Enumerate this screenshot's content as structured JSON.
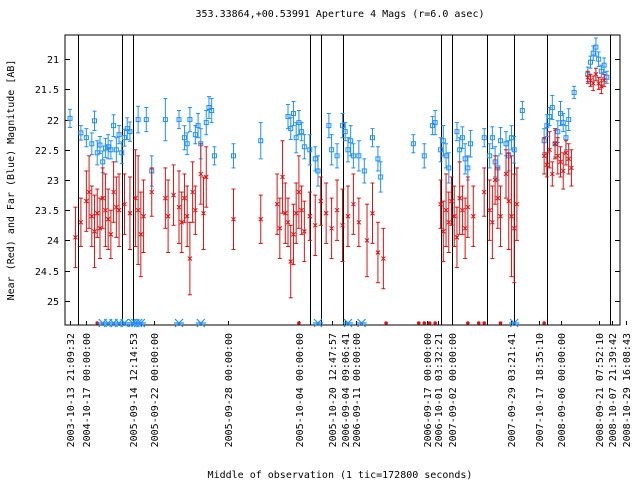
{
  "chart_data": {
    "type": "scatter",
    "title": "353.33864,+00.53991   Aperture 4 Mags (r=6.0 asec)",
    "xlabel": "Middle of observation (1 tic=172800 seconds)",
    "ylabel": "Near (Red) and Far (Blue) Magnitude [AB]",
    "ylim": [
      25.4,
      20.6
    ],
    "y_ticks": [
      21,
      21.5,
      22,
      22.5,
      23,
      23.5,
      24,
      24.5,
      25
    ],
    "grid": false,
    "axis_breaks": [
      0.015,
      0.095,
      0.115,
      0.44,
      0.46,
      0.5,
      0.68,
      0.7,
      0.765,
      0.815,
      0.875,
      0.99
    ],
    "x_tick_labels": [
      {
        "label": "2003-10-13 21:09:32",
        "pos": 0.0
      },
      {
        "label": "2004-10-17 00:00:00",
        "pos": 0.03
      },
      {
        "label": "2005-09-14 12:14:53",
        "pos": 0.115
      },
      {
        "label": "2005-09-22 00:00:00",
        "pos": 0.155
      },
      {
        "label": "2005-09-28 00:00:00",
        "pos": 0.29
      },
      {
        "label": "2005-10-04 00:00:00",
        "pos": 0.42
      },
      {
        "label": "2005-10-20 12:47:57",
        "pos": 0.48
      },
      {
        "label": "2006-09-04 09:06:41",
        "pos": 0.505
      },
      {
        "label": "2006-09-11 00:00:00",
        "pos": 0.525
      },
      {
        "label": "2006-09-17 00:00:00",
        "pos": 0.655
      },
      {
        "label": "2006-10-01 03:32:21",
        "pos": 0.675
      },
      {
        "label": "2007-09-02 00:00:00",
        "pos": 0.7
      },
      {
        "label": "2007-09-29 03:21:41",
        "pos": 0.81
      },
      {
        "label": "2007-10-17 18:35:10",
        "pos": 0.86
      },
      {
        "label": "2008-09-06 00:00:00",
        "pos": 0.9
      },
      {
        "label": "2008-09-21 07:52:10",
        "pos": 0.97
      },
      {
        "label": "2008-10-07 21:39:42",
        "pos": 0.995
      },
      {
        "label": "2008-10-29 16:08:43",
        "pos": 1.02
      }
    ],
    "series": [
      {
        "name": "Far (Blue)",
        "color": "#1e90ff",
        "marker": "square",
        "points": [
          [
            0.0,
            21.98,
            0.15
          ],
          [
            0.02,
            22.22,
            0.12
          ],
          [
            0.03,
            22.3,
            0.15
          ],
          [
            0.04,
            22.4,
            0.18
          ],
          [
            0.045,
            22.02,
            0.16
          ],
          [
            0.05,
            22.55,
            0.2
          ],
          [
            0.055,
            22.42,
            0.14
          ],
          [
            0.06,
            22.7,
            0.18
          ],
          [
            0.065,
            22.47,
            0.16
          ],
          [
            0.07,
            22.45,
            0.2
          ],
          [
            0.075,
            22.5,
            0.15
          ],
          [
            0.08,
            22.1,
            0.18
          ],
          [
            0.085,
            22.5,
            0.2
          ],
          [
            0.09,
            22.25,
            0.15
          ],
          [
            0.095,
            22.55,
            0.18
          ],
          [
            0.1,
            22.3,
            0.14
          ],
          [
            0.105,
            22.15,
            0.18
          ],
          [
            0.11,
            22.2,
            0.16
          ],
          [
            0.125,
            22.0,
            0.22
          ],
          [
            0.14,
            22.0,
            0.2
          ],
          [
            0.15,
            22.85,
            0.25
          ],
          [
            0.175,
            22.0,
            0.35
          ],
          [
            0.2,
            22.0,
            0.15
          ],
          [
            0.21,
            22.3,
            0.2
          ],
          [
            0.215,
            22.4,
            0.18
          ],
          [
            0.22,
            22.0,
            0.2
          ],
          [
            0.23,
            22.25,
            0.15
          ],
          [
            0.235,
            22.1,
            0.2
          ],
          [
            0.24,
            22.4,
            0.25
          ],
          [
            0.25,
            22.05,
            0.2
          ],
          [
            0.255,
            21.8,
            0.18
          ],
          [
            0.26,
            21.85,
            0.2
          ],
          [
            0.265,
            22.6,
            0.15
          ],
          [
            0.3,
            22.6,
            0.2
          ],
          [
            0.35,
            22.35,
            0.3
          ],
          [
            0.4,
            21.95,
            0.2
          ],
          [
            0.405,
            22.15,
            0.18
          ],
          [
            0.41,
            21.9,
            0.2
          ],
          [
            0.415,
            22.3,
            0.25
          ],
          [
            0.42,
            22.05,
            0.2
          ],
          [
            0.425,
            22.2,
            0.15
          ],
          [
            0.43,
            22.45,
            0.2
          ],
          [
            0.44,
            22.5,
            0.25
          ],
          [
            0.45,
            22.65,
            0.2
          ],
          [
            0.455,
            22.85,
            0.25
          ],
          [
            0.475,
            22.1,
            0.2
          ],
          [
            0.48,
            22.5,
            0.25
          ],
          [
            0.49,
            22.6,
            0.2
          ],
          [
            0.5,
            22.1,
            0.2
          ],
          [
            0.505,
            22.2,
            0.15
          ],
          [
            0.51,
            22.5,
            0.2
          ],
          [
            0.515,
            22.35,
            0.25
          ],
          [
            0.52,
            22.6,
            0.2
          ],
          [
            0.53,
            22.6,
            0.25
          ],
          [
            0.54,
            22.85,
            0.2
          ],
          [
            0.555,
            22.3,
            0.15
          ],
          [
            0.565,
            22.65,
            0.2
          ],
          [
            0.57,
            22.95,
            0.25
          ],
          [
            0.63,
            22.4,
            0.15
          ],
          [
            0.65,
            22.6,
            0.2
          ],
          [
            0.665,
            22.1,
            0.15
          ],
          [
            0.67,
            22.05,
            0.2
          ],
          [
            0.68,
            22.5,
            0.2
          ],
          [
            0.685,
            22.35,
            0.25
          ],
          [
            0.69,
            22.6,
            0.2
          ],
          [
            0.695,
            22.8,
            0.25
          ],
          [
            0.71,
            22.2,
            0.15
          ],
          [
            0.715,
            22.5,
            0.2
          ],
          [
            0.72,
            22.3,
            0.18
          ],
          [
            0.725,
            22.65,
            0.25
          ],
          [
            0.73,
            22.8,
            0.2
          ],
          [
            0.735,
            22.4,
            0.22
          ],
          [
            0.76,
            22.3,
            0.15
          ],
          [
            0.77,
            22.6,
            0.2
          ],
          [
            0.775,
            22.3,
            0.18
          ],
          [
            0.78,
            22.7,
            0.25
          ],
          [
            0.785,
            22.8,
            0.2
          ],
          [
            0.79,
            22.35,
            0.22
          ],
          [
            0.8,
            22.4,
            0.2
          ],
          [
            0.805,
            22.6,
            0.25
          ],
          [
            0.81,
            22.3,
            0.2
          ],
          [
            0.815,
            22.5,
            0.22
          ],
          [
            0.83,
            21.85,
            0.15
          ],
          [
            0.87,
            22.35,
            0.2
          ],
          [
            0.875,
            22.1,
            0.18
          ],
          [
            0.88,
            21.95,
            0.15
          ],
          [
            0.885,
            21.8,
            0.2
          ],
          [
            0.89,
            22.4,
            0.22
          ],
          [
            0.895,
            22.2,
            0.18
          ],
          [
            0.9,
            21.9,
            0.2
          ],
          [
            0.905,
            22.05,
            0.15
          ],
          [
            0.91,
            22.3,
            0.2
          ],
          [
            0.915,
            22.0,
            0.18
          ],
          [
            0.925,
            21.55,
            0.1
          ],
          [
            0.95,
            21.25,
            0.12
          ],
          [
            0.955,
            21.05,
            0.1
          ],
          [
            0.96,
            20.9,
            0.12
          ],
          [
            0.965,
            20.8,
            0.15
          ],
          [
            0.97,
            21.0,
            0.12
          ],
          [
            0.975,
            21.2,
            0.1
          ],
          [
            0.98,
            21.1,
            0.12
          ],
          [
            0.985,
            21.3,
            0.1
          ]
        ]
      },
      {
        "name": "Near (Red)",
        "color": "#dd1111",
        "marker": "x",
        "points": [
          [
            0.01,
            23.95,
            0.5
          ],
          [
            0.02,
            23.7,
            0.4
          ],
          [
            0.03,
            23.35,
            0.5
          ],
          [
            0.035,
            23.2,
            0.6
          ],
          [
            0.04,
            23.6,
            0.5
          ],
          [
            0.045,
            23.85,
            0.6
          ],
          [
            0.05,
            23.55,
            0.4
          ],
          [
            0.055,
            23.8,
            0.5
          ],
          [
            0.06,
            23.3,
            0.5
          ],
          [
            0.065,
            23.5,
            0.6
          ],
          [
            0.07,
            23.65,
            0.5
          ],
          [
            0.075,
            23.9,
            0.4
          ],
          [
            0.08,
            23.2,
            0.5
          ],
          [
            0.085,
            23.45,
            0.5
          ],
          [
            0.09,
            23.5,
            0.6
          ],
          [
            0.1,
            23.4,
            0.5
          ],
          [
            0.11,
            23.55,
            0.6
          ],
          [
            0.12,
            23.3,
            0.8
          ],
          [
            0.125,
            23.5,
            0.9
          ],
          [
            0.13,
            23.9,
            0.7
          ],
          [
            0.135,
            23.6,
            0.6
          ],
          [
            0.15,
            23.2,
            0.4
          ],
          [
            0.175,
            23.3,
            0.5
          ],
          [
            0.18,
            23.6,
            0.6
          ],
          [
            0.19,
            23.25,
            0.5
          ],
          [
            0.2,
            23.45,
            0.6
          ],
          [
            0.205,
            23.7,
            0.5
          ],
          [
            0.21,
            23.3,
            0.4
          ],
          [
            0.215,
            23.6,
            0.5
          ],
          [
            0.22,
            24.3,
            0.6
          ],
          [
            0.225,
            23.2,
            0.5
          ],
          [
            0.23,
            23.5,
            0.4
          ],
          [
            0.24,
            22.9,
            0.5
          ],
          [
            0.245,
            23.55,
            0.6
          ],
          [
            0.25,
            22.95,
            0.5
          ],
          [
            0.3,
            23.65,
            0.5
          ],
          [
            0.35,
            23.65,
            0.4
          ],
          [
            0.38,
            23.4,
            0.5
          ],
          [
            0.385,
            23.8,
            0.5
          ],
          [
            0.39,
            22.95,
            0.6
          ],
          [
            0.395,
            23.55,
            0.5
          ],
          [
            0.4,
            23.7,
            0.4
          ],
          [
            0.405,
            24.35,
            0.6
          ],
          [
            0.41,
            23.9,
            0.5
          ],
          [
            0.415,
            23.55,
            0.5
          ],
          [
            0.42,
            23.2,
            0.6
          ],
          [
            0.425,
            23.5,
            0.4
          ],
          [
            0.43,
            23.85,
            0.5
          ],
          [
            0.44,
            23.6,
            0.4
          ],
          [
            0.45,
            23.75,
            0.5
          ],
          [
            0.46,
            23.35,
            0.4
          ],
          [
            0.47,
            23.55,
            0.5
          ],
          [
            0.48,
            23.8,
            0.5
          ],
          [
            0.49,
            23.5,
            0.5
          ],
          [
            0.5,
            23.75,
            0.6
          ],
          [
            0.51,
            23.6,
            0.5
          ],
          [
            0.52,
            23.4,
            0.5
          ],
          [
            0.53,
            23.7,
            0.4
          ],
          [
            0.545,
            24.0,
            0.6
          ],
          [
            0.555,
            23.55,
            0.5
          ],
          [
            0.565,
            24.2,
            0.5
          ],
          [
            0.575,
            24.3,
            0.5
          ],
          [
            0.68,
            23.4,
            0.4
          ],
          [
            0.685,
            23.85,
            0.5
          ],
          [
            0.69,
            23.5,
            0.6
          ],
          [
            0.695,
            23.7,
            0.5
          ],
          [
            0.7,
            23.35,
            0.4
          ],
          [
            0.705,
            23.6,
            0.5
          ],
          [
            0.71,
            23.95,
            0.5
          ],
          [
            0.715,
            23.3,
            0.6
          ],
          [
            0.72,
            23.5,
            0.4
          ],
          [
            0.725,
            23.8,
            0.5
          ],
          [
            0.73,
            23.45,
            0.5
          ],
          [
            0.74,
            23.6,
            0.5
          ],
          [
            0.76,
            23.2,
            0.4
          ],
          [
            0.77,
            23.5,
            0.5
          ],
          [
            0.775,
            23.7,
            0.6
          ],
          [
            0.78,
            23.0,
            0.4
          ],
          [
            0.785,
            23.3,
            0.5
          ],
          [
            0.79,
            23.6,
            0.5
          ],
          [
            0.8,
            22.9,
            0.4
          ],
          [
            0.805,
            23.35,
            0.8
          ],
          [
            0.81,
            23.6,
            1.0
          ],
          [
            0.815,
            23.8,
            0.9
          ],
          [
            0.82,
            23.4,
            0.6
          ],
          [
            0.87,
            22.6,
            0.3
          ],
          [
            0.875,
            22.75,
            0.2
          ],
          [
            0.88,
            22.5,
            0.3
          ],
          [
            0.885,
            22.9,
            0.2
          ],
          [
            0.89,
            22.4,
            0.25
          ],
          [
            0.895,
            22.6,
            0.3
          ],
          [
            0.9,
            22.7,
            0.25
          ],
          [
            0.905,
            22.85,
            0.3
          ],
          [
            0.91,
            22.55,
            0.2
          ],
          [
            0.915,
            22.65,
            0.25
          ],
          [
            0.92,
            22.8,
            0.3
          ],
          [
            0.95,
            21.3,
            0.1
          ],
          [
            0.955,
            21.35,
            0.1
          ],
          [
            0.96,
            21.4,
            0.12
          ],
          [
            0.965,
            21.25,
            0.1
          ],
          [
            0.97,
            21.4,
            0.1
          ],
          [
            0.975,
            21.45,
            0.12
          ],
          [
            0.98,
            21.35,
            0.1
          ]
        ]
      }
    ],
    "bottom_markers": {
      "color_x": "#1e90ff",
      "color_dot": "#dd1111",
      "stars": [
        0.06,
        0.07,
        0.08,
        0.09,
        0.1,
        0.115,
        0.12,
        0.125,
        0.13,
        0.2,
        0.24,
        0.455,
        0.51,
        0.535,
        0.815
      ],
      "dots": [
        0.05,
        0.42,
        0.58,
        0.64,
        0.65,
        0.66,
        0.67,
        0.73,
        0.75,
        0.76,
        0.79,
        0.87
      ]
    }
  }
}
